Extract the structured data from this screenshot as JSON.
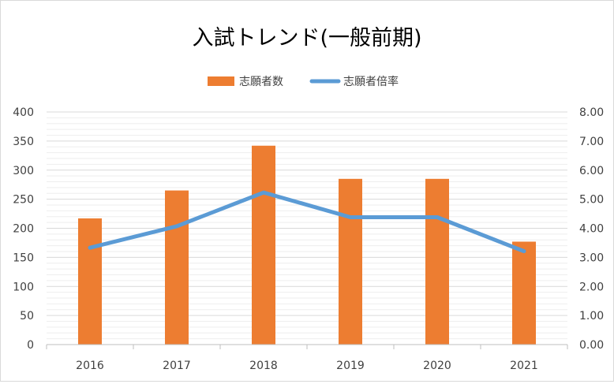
{
  "chart_data": {
    "type": "bar",
    "title": "入試トレンド(一般前期)",
    "categories": [
      "2016",
      "2017",
      "2018",
      "2019",
      "2020",
      "2021"
    ],
    "series": [
      {
        "name": "志願者数",
        "kind": "bar",
        "axis": "left",
        "color": "#ED7D31",
        "values": [
          217,
          265,
          342,
          285,
          285,
          177
        ]
      },
      {
        "name": "志願者倍率",
        "kind": "line",
        "axis": "right",
        "color": "#5B9BD5",
        "values": [
          3.33,
          4.07,
          5.23,
          4.38,
          4.38,
          3.21
        ]
      }
    ],
    "y_left": {
      "min": 0,
      "max": 400,
      "ticks": [
        "0",
        "50",
        "100",
        "150",
        "200",
        "250",
        "300",
        "350",
        "400"
      ]
    },
    "y_right": {
      "min": 0,
      "max": 8,
      "ticks": [
        "0.00",
        "1.00",
        "2.00",
        "3.00",
        "4.00",
        "5.00",
        "6.00",
        "7.00",
        "8.00"
      ]
    },
    "legend_position": "top",
    "grid": true
  }
}
